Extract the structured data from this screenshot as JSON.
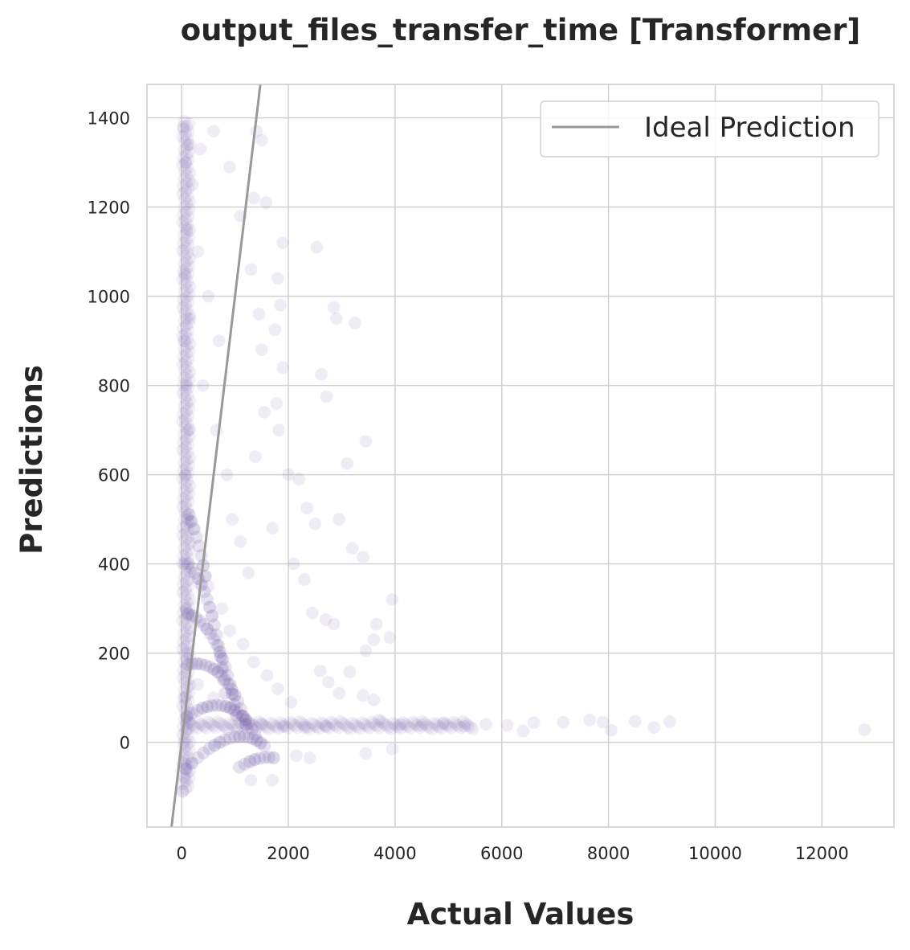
{
  "chart_data": {
    "type": "scatter",
    "title": "output_files_transfer_time [Transformer]",
    "xlabel": "Actual Values",
    "ylabel": "Predictions",
    "xlim": [
      -650,
      13350
    ],
    "ylim": [
      -190,
      1475
    ],
    "x_ticks": [
      0,
      2000,
      4000,
      6000,
      8000,
      10000,
      12000
    ],
    "y_ticks": [
      0,
      200,
      400,
      600,
      800,
      1000,
      1200,
      1400
    ],
    "grid": true,
    "legend": {
      "placement": "top-right",
      "entries": [
        "Ideal Prediction"
      ]
    },
    "colors": {
      "points": "#8170b5",
      "ideal_line": "#999999",
      "grid": "#d0d0d0",
      "spine": "#cccccc"
    },
    "ideal_line": {
      "slope": 1,
      "intercept": 0
    },
    "series": [
      {
        "points": [
          [
            30,
            1380
          ],
          [
            80,
            1300
          ],
          [
            120,
            1340
          ],
          [
            200,
            1250
          ],
          [
            350,
            1330
          ],
          [
            600,
            1370
          ],
          [
            900,
            1290
          ],
          [
            1400,
            1370
          ],
          [
            1500,
            1350
          ],
          [
            1350,
            1220
          ],
          [
            1580,
            1210
          ],
          [
            1100,
            1180
          ],
          [
            1300,
            1060
          ],
          [
            1900,
            1120
          ],
          [
            2530,
            1110
          ],
          [
            1800,
            1040
          ],
          [
            1850,
            980
          ],
          [
            2850,
            975
          ],
          [
            2900,
            950
          ],
          [
            3250,
            940
          ],
          [
            1450,
            960
          ],
          [
            1750,
            925
          ],
          [
            1500,
            880
          ],
          [
            1900,
            840
          ],
          [
            2620,
            825
          ],
          [
            2720,
            775
          ],
          [
            1780,
            760
          ],
          [
            1550,
            740
          ],
          [
            1820,
            700
          ],
          [
            3450,
            675
          ],
          [
            3100,
            625
          ],
          [
            2000,
            600
          ],
          [
            2200,
            590
          ],
          [
            1380,
            640
          ],
          [
            2350,
            525
          ],
          [
            2500,
            490
          ],
          [
            2950,
            500
          ],
          [
            1700,
            480
          ],
          [
            3200,
            435
          ],
          [
            3400,
            415
          ],
          [
            2100,
            400
          ],
          [
            3950,
            320
          ],
          [
            2300,
            365
          ],
          [
            2450,
            290
          ],
          [
            3650,
            265
          ],
          [
            2700,
            275
          ],
          [
            2850,
            265
          ],
          [
            3600,
            230
          ],
          [
            3900,
            235
          ],
          [
            3450,
            205
          ],
          [
            2600,
            160
          ],
          [
            3150,
            158
          ],
          [
            2750,
            135
          ],
          [
            2950,
            110
          ],
          [
            3400,
            105
          ],
          [
            3600,
            95
          ],
          [
            3700,
            50
          ],
          [
            4100,
            40
          ],
          [
            4500,
            38
          ],
          [
            4900,
            42
          ],
          [
            5300,
            36
          ],
          [
            5700,
            40
          ],
          [
            6100,
            38
          ],
          [
            6600,
            44
          ],
          [
            6400,
            25
          ],
          [
            7150,
            45
          ],
          [
            7650,
            50
          ],
          [
            7900,
            45
          ],
          [
            8050,
            27
          ],
          [
            8500,
            47
          ],
          [
            8850,
            33
          ],
          [
            9150,
            46
          ],
          [
            12800,
            28
          ],
          [
            3450,
            -25
          ],
          [
            3950,
            -15
          ],
          [
            1300,
            -85
          ],
          [
            1700,
            -85
          ],
          [
            2150,
            -30
          ],
          [
            2400,
            -35
          ],
          [
            20,
            -110
          ],
          [
            50,
            -80
          ],
          [
            100,
            1150
          ],
          [
            60,
            1050
          ],
          [
            150,
            950
          ],
          [
            40,
            900
          ],
          [
            90,
            800
          ],
          [
            130,
            700
          ],
          [
            70,
            600
          ],
          [
            110,
            500
          ],
          [
            50,
            400
          ],
          [
            80,
            300
          ],
          [
            120,
            200
          ],
          [
            60,
            100
          ],
          [
            100,
            50
          ],
          [
            40,
            0
          ],
          [
            80,
            -50
          ],
          [
            300,
            1100
          ],
          [
            500,
            1000
          ],
          [
            700,
            900
          ],
          [
            400,
            800
          ],
          [
            650,
            700
          ],
          [
            850,
            600
          ],
          [
            950,
            500
          ],
          [
            1100,
            450
          ],
          [
            1250,
            380
          ],
          [
            500,
            350
          ],
          [
            750,
            300
          ],
          [
            900,
            250
          ],
          [
            1150,
            220
          ],
          [
            1350,
            180
          ],
          [
            1600,
            150
          ],
          [
            1800,
            120
          ],
          [
            2050,
            90
          ],
          [
            300,
            130
          ],
          [
            600,
            100
          ],
          [
            1000,
            70
          ],
          [
            1200,
            50
          ],
          [
            1500,
            40
          ],
          [
            1900,
            35
          ],
          [
            2300,
            33
          ],
          [
            2700,
            36
          ]
        ]
      }
    ]
  }
}
